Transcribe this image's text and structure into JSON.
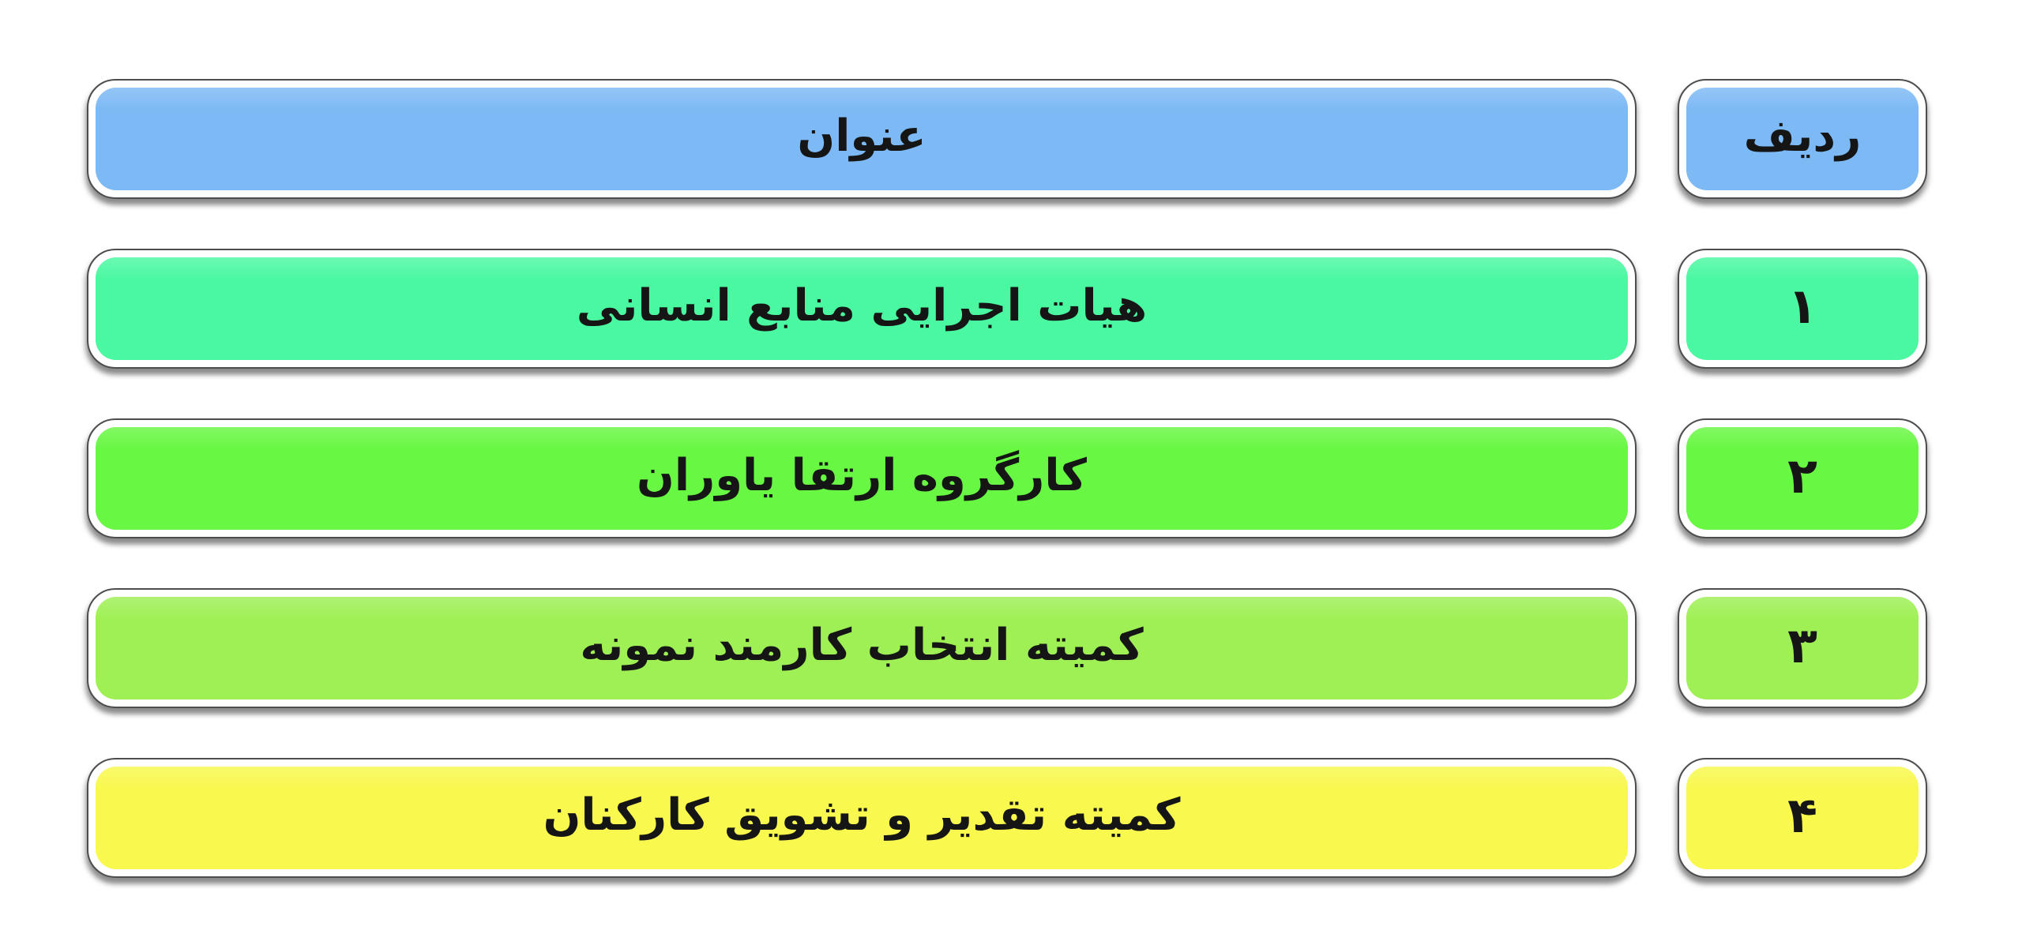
{
  "slide": {
    "background": "#ffffff",
    "text_color": "#151515",
    "box_outline_color": "#4d4d4d",
    "box_ring_color": "#ffffff"
  },
  "table": {
    "header": {
      "row_label": "ردیف",
      "title_label": "عنوان",
      "color": "#7db9f5"
    },
    "rows": [
      {
        "num": "۱",
        "title": "هیات اجرایی منابع انسانی",
        "color": "#4af8a1"
      },
      {
        "num": "۲",
        "title": "کارگروه ارتقا یاوران",
        "color": "#68f743"
      },
      {
        "num": "۳",
        "title": "کمیته انتخاب کارمند نمونه",
        "color": "#9ff055"
      },
      {
        "num": "۴",
        "title": "کمیته تقدیر و تشویق کارکنان",
        "color": "#f8f84e"
      }
    ]
  }
}
